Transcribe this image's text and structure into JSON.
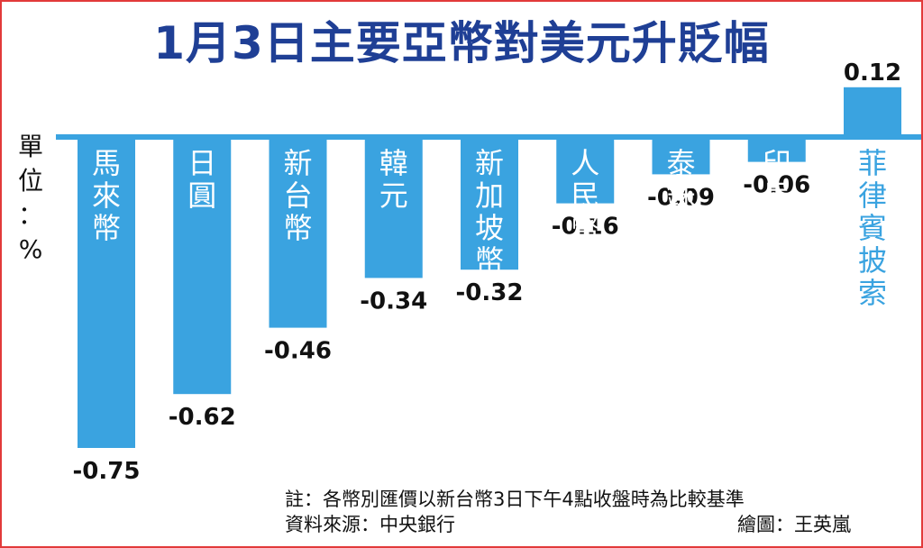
{
  "chart_data": {
    "type": "bar",
    "title": "1月3日主要亞幣對美元升貶幅",
    "unit_label": "單位：%",
    "categories": [
      "馬來幣",
      "日圓",
      "新台幣",
      "韓元",
      "新加坡幣",
      "人民幣",
      "泰銖",
      "印尼盾",
      "菲律賓披索"
    ],
    "values": [
      -0.75,
      -0.62,
      -0.46,
      -0.34,
      -0.32,
      -0.16,
      -0.09,
      -0.06,
      0.12
    ],
    "value_labels": [
      "-0.75",
      "-0.62",
      "-0.46",
      "-0.34",
      "-0.32",
      "-0.16",
      "-0.09",
      "-0.06",
      "0.12"
    ],
    "bar_color": "#3aa3e0",
    "bar_label_color": "#ffffff",
    "positive_label_color": "#3aa3e0",
    "baseline_color": "#3aa3e0"
  },
  "notes": {
    "note": "註：各幣別匯價以新台幣3日下午4點收盤時為比較基準",
    "source": "資料來源：中央銀行",
    "credit": "繪圖：王英嵐"
  },
  "colors": {
    "title": "#1f3f95",
    "frame": "#e23a3a"
  }
}
